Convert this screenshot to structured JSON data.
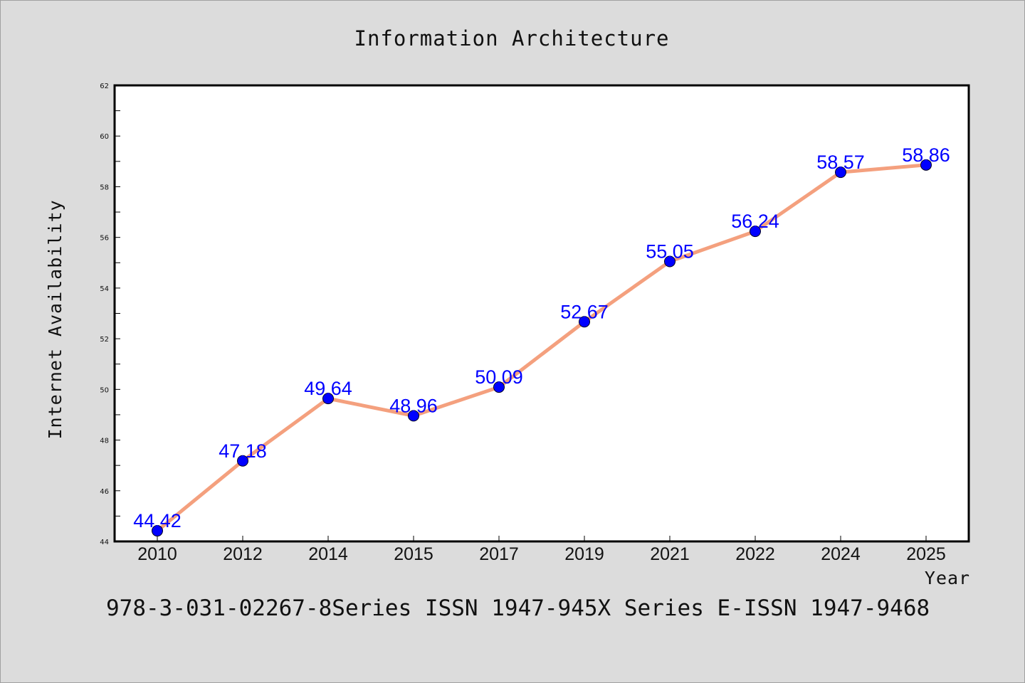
{
  "chart_data": {
    "type": "line",
    "title": "Information Architecture",
    "xlabel": "Year",
    "ylabel": "Internet Availability",
    "categories": [
      "2010",
      "2012",
      "2014",
      "2015",
      "2017",
      "2019",
      "2021",
      "2022",
      "2024",
      "2025"
    ],
    "series": [
      {
        "values": [
          44.42,
          47.18,
          49.64,
          48.96,
          50.09,
          52.67,
          55.05,
          56.24,
          58.57,
          58.86
        ],
        "data_labels": [
          "44.42",
          "47.18",
          "49.64",
          "48.96",
          "50.09",
          "52.67",
          "55.05",
          "56.24",
          "58.57",
          "58.86"
        ],
        "line_color": "#f4a07e",
        "marker_color": "#0000ff"
      }
    ],
    "ylim": [
      44,
      62
    ],
    "yticks": [
      "44",
      "46",
      "48",
      "50",
      "52",
      "54",
      "56",
      "58",
      "60",
      "62"
    ],
    "grid": false,
    "legend": "none"
  },
  "footer_text": "978-3-031-02267-8Series ISSN 1947-945X Series E-ISSN 1947-9468",
  "colors": {
    "background": "#dcdcdc",
    "plot_background": "#ffffff",
    "line": "#f4a07e",
    "marker": "#0000ff",
    "data_label": "#0000ff"
  }
}
